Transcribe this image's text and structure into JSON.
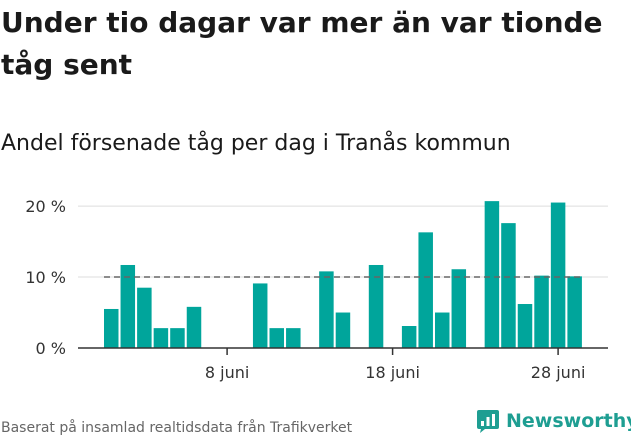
{
  "title": "Under tio dagar var mer än var tionde tåg sent",
  "subtitle": "Andel försenade tåg per dag i Tranås kommun",
  "source": "Baserat på insamlad realtidsdata från Trafikverket",
  "brand": "Newsworthy",
  "colors": {
    "bar": "#00a59b",
    "reference": "#666666",
    "brand": "#1e9e92"
  },
  "chart_data": {
    "type": "bar",
    "unit": "%",
    "x": [
      "2019-06-01",
      "2019-06-02",
      "2019-06-03",
      "2019-06-04",
      "2019-06-05",
      "2019-06-06",
      "2019-06-07",
      "2019-06-08",
      "2019-06-09",
      "2019-06-10",
      "2019-06-11",
      "2019-06-12",
      "2019-06-13",
      "2019-06-14",
      "2019-06-15",
      "2019-06-16",
      "2019-06-17",
      "2019-06-18",
      "2019-06-19",
      "2019-06-20",
      "2019-06-21",
      "2019-06-22",
      "2019-06-23",
      "2019-06-24",
      "2019-06-25",
      "2019-06-26",
      "2019-06-27",
      "2019-06-28",
      "2019-06-29"
    ],
    "values": [
      5.5,
      11.7,
      8.5,
      2.8,
      2.8,
      5.8,
      0,
      0,
      0,
      9.1,
      2.8,
      2.8,
      0,
      10.8,
      5.0,
      0,
      11.7,
      0,
      3.1,
      16.3,
      5.0,
      11.1,
      0,
      20.7,
      17.6,
      6.2,
      10.2,
      20.5,
      10.1
    ],
    "reference_line": 10,
    "ylim": [
      0,
      21
    ],
    "y_ticks": [
      0,
      10,
      20
    ],
    "y_tick_labels": [
      "0 %",
      "10 %",
      "20 %"
    ],
    "x_ticks": [
      "2019-06-08",
      "2019-06-18",
      "2019-06-28"
    ],
    "x_tick_labels": [
      "8 juni",
      "18 juni",
      "28 juni"
    ],
    "grid": true,
    "legend": false
  }
}
